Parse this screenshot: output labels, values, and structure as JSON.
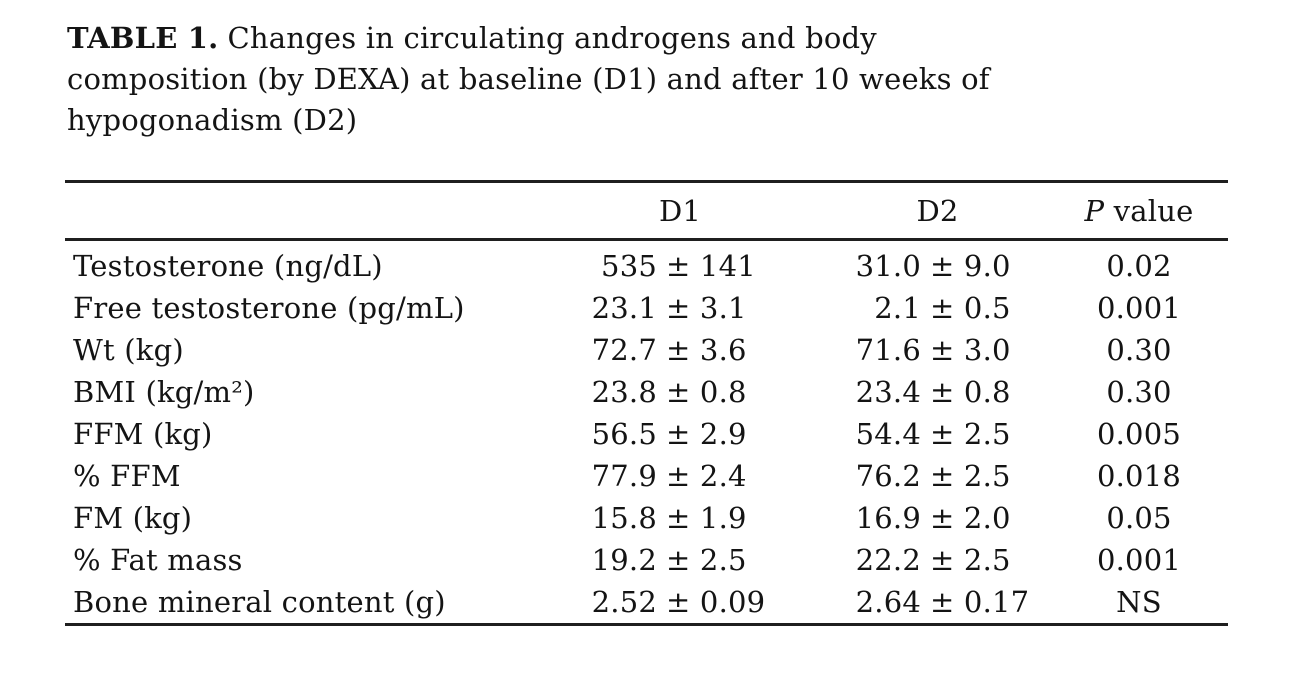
{
  "page": {
    "background": "#ffffff",
    "text_color": "#141414",
    "rule_color": "#1f1f1f"
  },
  "caption": {
    "label": "TABLE 1.",
    "line1_rest": "Changes in circulating androgens and body",
    "line2": "composition (by DEXA) at baseline (D1) and after 10 weeks of",
    "line3": "hypogonadism (D2)"
  },
  "table": {
    "header": {
      "label_col": "",
      "d1": "D1",
      "d2": "D2",
      "p_italic": "P",
      "p_rest": " value"
    },
    "rows": [
      {
        "label": "Testosterone (ng/dL)",
        "d1_mean": "535",
        "d1_sd": "± 141",
        "d2_mean": "31.0",
        "d2_sd": "± 9.0",
        "p": "0.02"
      },
      {
        "label": "Free testosterone (pg/mL)",
        "d1_mean": "23.1",
        "d1_sd": "± 3.1",
        "d2_mean": "2.1",
        "d2_sd": "± 0.5",
        "p": "0.001"
      },
      {
        "label": "Wt (kg)",
        "d1_mean": "72.7",
        "d1_sd": "± 3.6",
        "d2_mean": "71.6",
        "d2_sd": "± 3.0",
        "p": "0.30"
      },
      {
        "label": "BMI (kg/m²)",
        "d1_mean": "23.8",
        "d1_sd": "± 0.8",
        "d2_mean": "23.4",
        "d2_sd": "± 0.8",
        "p": "0.30"
      },
      {
        "label": "FFM (kg)",
        "d1_mean": "56.5",
        "d1_sd": "± 2.9",
        "d2_mean": "54.4",
        "d2_sd": "± 2.5",
        "p": "0.005"
      },
      {
        "label": "% FFM",
        "d1_mean": "77.9",
        "d1_sd": "± 2.4",
        "d2_mean": "76.2",
        "d2_sd": "± 2.5",
        "p": "0.018"
      },
      {
        "label": "FM (kg)",
        "d1_mean": "15.8",
        "d1_sd": "± 1.9",
        "d2_mean": "16.9",
        "d2_sd": "± 2.0",
        "p": "0.05"
      },
      {
        "label": "% Fat mass",
        "d1_mean": "19.2",
        "d1_sd": "± 2.5",
        "d2_mean": "22.2",
        "d2_sd": "± 2.5",
        "p": "0.001"
      },
      {
        "label": "Bone mineral content (g)",
        "d1_mean": "2.52",
        "d1_sd": "± 0.09",
        "d2_mean": "2.64",
        "d2_sd": "± 0.17",
        "p": "NS"
      }
    ]
  },
  "chart_data": {
    "type": "table",
    "title": "TABLE 1. Changes in circulating androgens and body composition (by DEXA) at baseline (D1) and after 10 weeks of hypogonadism (D2)",
    "columns": [
      "",
      "D1",
      "D2",
      "P value"
    ],
    "rows": [
      [
        "Testosterone (ng/dL)",
        "535 ± 141",
        "31.0 ± 9.0",
        "0.02"
      ],
      [
        "Free testosterone (pg/mL)",
        "23.1 ± 3.1",
        "2.1 ± 0.5",
        "0.001"
      ],
      [
        "Wt (kg)",
        "72.7 ± 3.6",
        "71.6 ± 3.0",
        "0.30"
      ],
      [
        "BMI (kg/m²)",
        "23.8 ± 0.8",
        "23.4 ± 0.8",
        "0.30"
      ],
      [
        "FFM (kg)",
        "56.5 ± 2.9",
        "54.4 ± 2.5",
        "0.005"
      ],
      [
        "% FFM",
        "77.9 ± 2.4",
        "76.2 ± 2.5",
        "0.018"
      ],
      [
        "FM (kg)",
        "15.8 ± 1.9",
        "16.9 ± 2.0",
        "0.05"
      ],
      [
        "% Fat mass",
        "19.2 ± 2.5",
        "22.2 ± 2.5",
        "0.001"
      ],
      [
        "Bone mineral content (g)",
        "2.52 ± 0.09",
        "2.64 ± 0.17",
        "NS"
      ]
    ]
  }
}
